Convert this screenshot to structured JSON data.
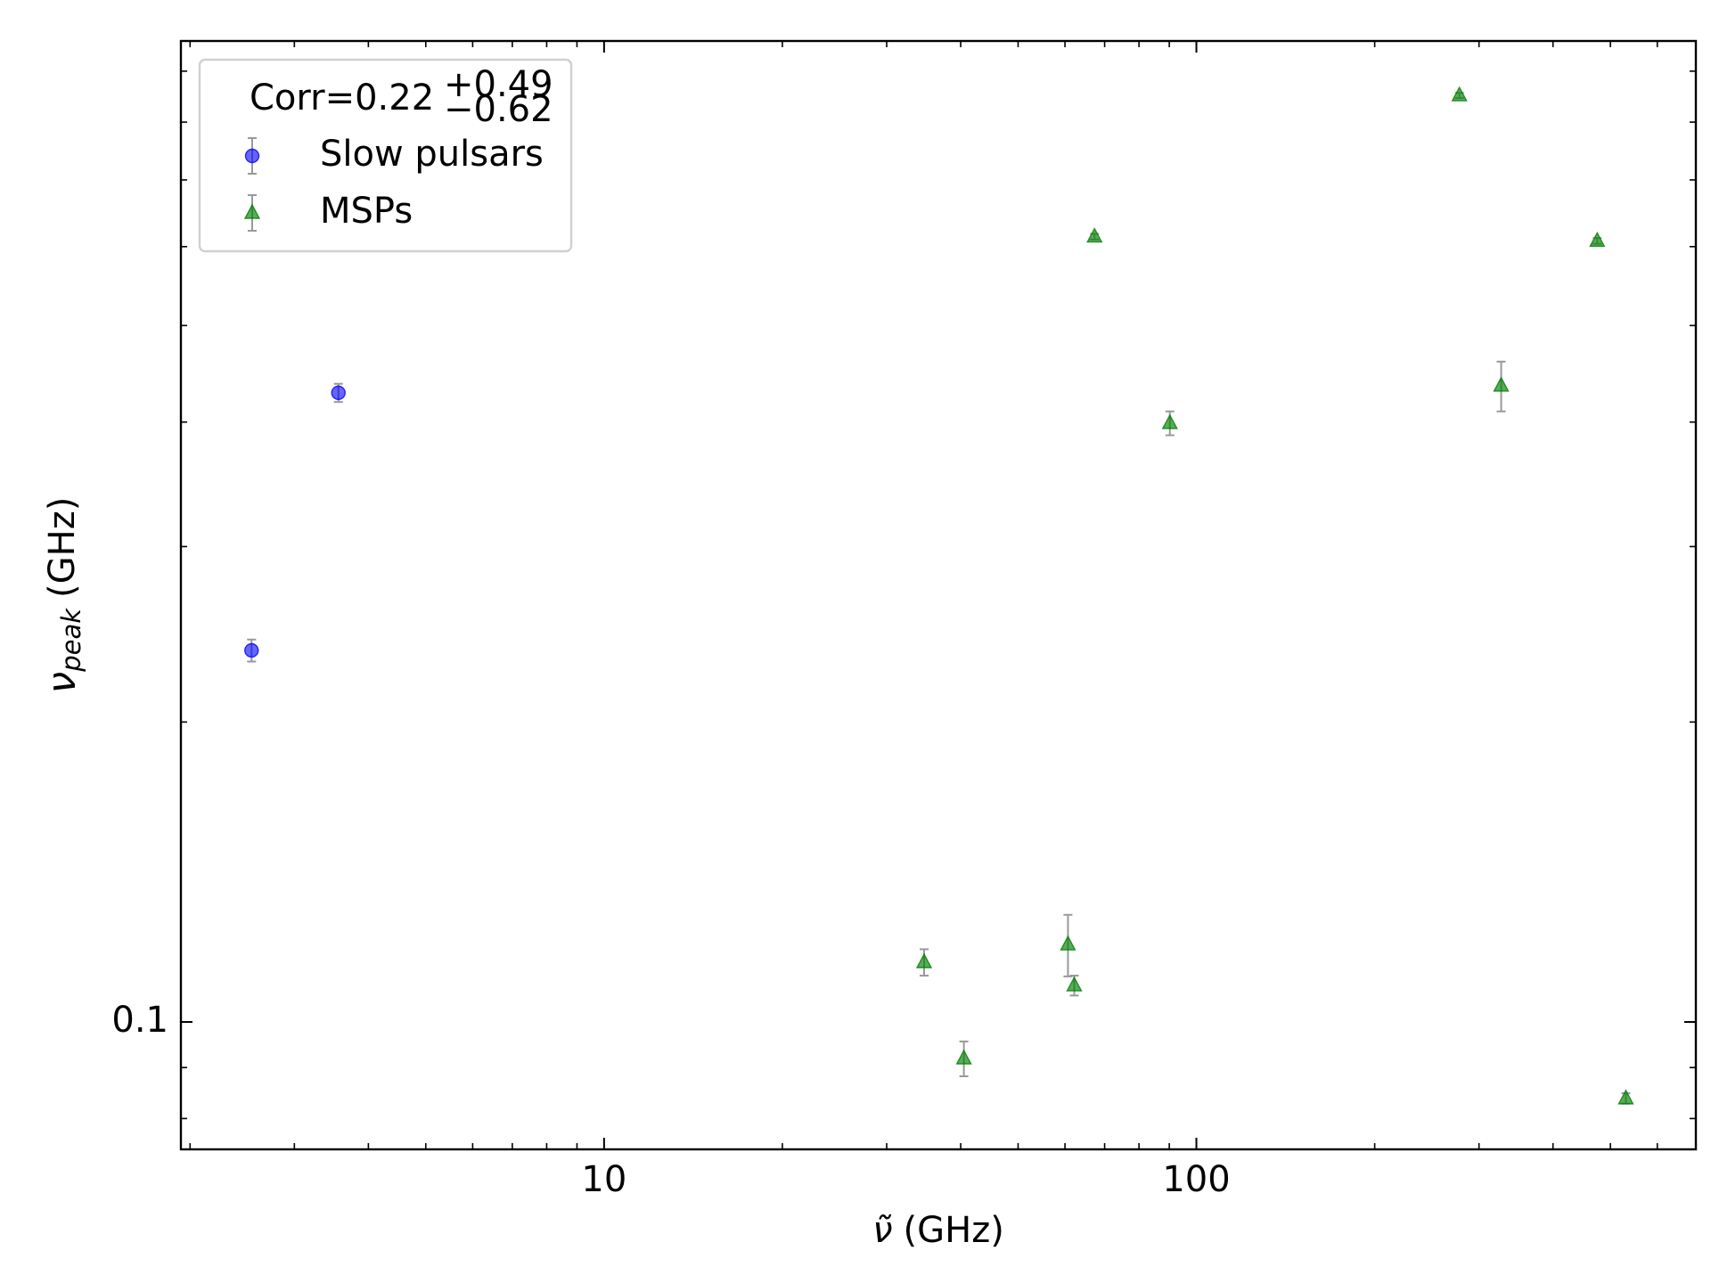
{
  "chart_data": {
    "type": "scatter",
    "xlabel": {
      "symbol": "ν̃",
      "unit": "(GHz)"
    },
    "ylabel": {
      "symbol": "ν",
      "subscript": "peak",
      "unit": "(GHz)"
    },
    "legend_title": {
      "text": "Corr=0.22",
      "sup": "+0.49",
      "sub": "−0.62"
    },
    "legend": "upper left",
    "xscale": "log",
    "yscale": "log",
    "xlim": [
      1.93,
      697
    ],
    "ylim": [
      0.0745,
      0.965
    ],
    "xticks": [
      10,
      100
    ],
    "yticks": [
      0.1
    ],
    "errorbar_color": "#999999",
    "series": [
      {
        "name": "Slow pulsars",
        "marker": "circle",
        "color": "#0000ff",
        "x": [
          2.54,
          3.56
        ],
        "values": [
          0.236,
          0.428
        ],
        "yerr": [
          0.006,
          0.009
        ]
      },
      {
        "name": "MSPs",
        "marker": "triangle",
        "color": "#008000",
        "x": [
          278,
          67.3,
          475,
          327,
          90.2,
          34.7,
          60.7,
          62.2,
          40.5,
          531
        ],
        "values": [
          0.851,
          0.614,
          0.608,
          0.435,
          0.399,
          0.1148,
          0.1196,
          0.1088,
          0.0919,
          0.0838
        ],
        "yerr": [
          0.005,
          0.004,
          0.004,
          0.025,
          0.011,
          0.0035,
          0.0085,
          0.0025,
          0.0037,
          0.001
        ]
      }
    ]
  }
}
